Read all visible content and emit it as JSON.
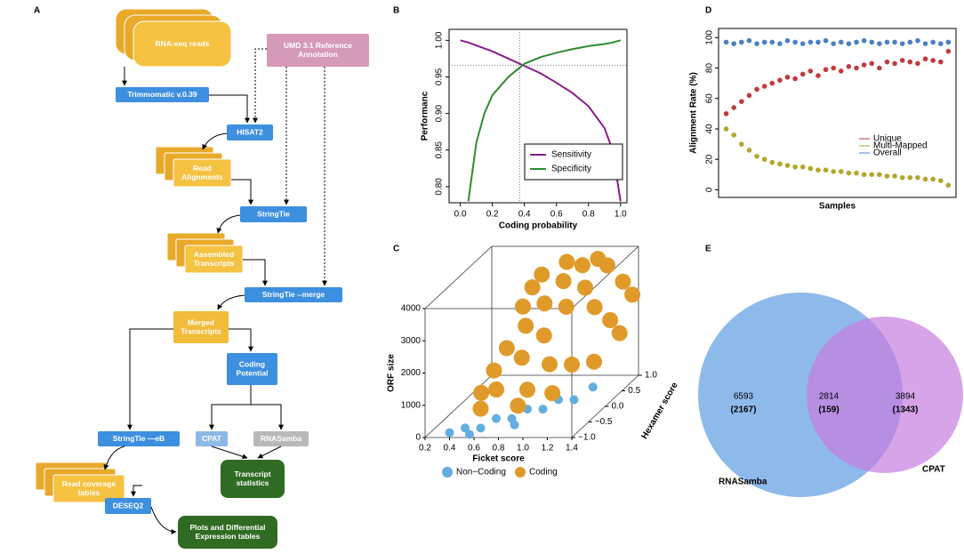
{
  "panel_labels": [
    "A",
    "B",
    "C",
    "D",
    "E"
  ],
  "diagram": {
    "nodes": [
      {
        "label": [
          "RNA-seq reads"
        ]
      },
      {
        "label": [
          "UMD 3.1 Reference",
          "Annotation"
        ]
      },
      {
        "label": [
          "Trimmomatic  v.0.39"
        ]
      },
      {
        "label": [
          "HISAT2"
        ]
      },
      {
        "label": [
          "Read",
          "Alignments"
        ]
      },
      {
        "label": [
          "StringTie"
        ]
      },
      {
        "label": [
          "Assembled",
          "Transcripts"
        ]
      },
      {
        "label": [
          "StringTie --merge"
        ]
      },
      {
        "label": [
          "Merged",
          "Transcripts"
        ]
      },
      {
        "label": [
          "Coding",
          "Potential"
        ]
      },
      {
        "label": [
          "StringTie —eB"
        ]
      },
      {
        "label": [
          "CPAT"
        ]
      },
      {
        "label": [
          "RNASamba"
        ]
      },
      {
        "label": [
          "Read coverage",
          "tables"
        ]
      },
      {
        "label": [
          "Transcript",
          "statistics"
        ]
      },
      {
        "label": [
          "DESEQ2"
        ]
      },
      {
        "label": [
          "Plots and Differential",
          "Expression tables"
        ]
      }
    ]
  },
  "chart_data": [
    {
      "type": "line",
      "xlabel": "Coding probability",
      "ylabel": "Performanc",
      "x": [
        0,
        0.05,
        0.1,
        0.15,
        0.2,
        0.3,
        0.4,
        0.5,
        0.6,
        0.7,
        0.8,
        0.9,
        0.95,
        1.0
      ],
      "xlim": [
        -0.07,
        1.04
      ],
      "ylim": [
        0.778,
        1.015
      ],
      "xticks": [
        {
          "value": 0,
          "label": "0.0"
        },
        0.2,
        0.4,
        0.6,
        0.8,
        {
          "value": 1,
          "label": "1.0"
        }
      ],
      "yticks": [
        {
          "value": 0.8,
          "label": "0.80"
        },
        0.85,
        {
          "value": 0.9,
          "label": "0.90"
        },
        0.95,
        {
          "value": 1,
          "label": "1.00"
        }
      ],
      "reference_lines": {
        "x": 0.37,
        "y": 0.966
      },
      "legend": "bottom-right",
      "series": [
        {
          "name": "Sensitivity",
          "color": "#8b1a8b",
          "values": [
            1.0,
            0.997,
            0.993,
            0.989,
            0.985,
            0.975,
            0.965,
            0.955,
            0.942,
            0.928,
            0.91,
            0.88,
            0.85,
            0.78
          ]
        },
        {
          "name": "Specificity",
          "color": "#2e8b2e",
          "values": [
            null,
            0.78,
            0.86,
            0.9,
            0.925,
            0.95,
            0.968,
            0.977,
            0.983,
            0.988,
            0.992,
            0.995,
            0.997,
            1.0
          ]
        }
      ]
    },
    {
      "type": "scatter3d",
      "xlabel": "Ficket score",
      "ylabel": "ORF size",
      "zlabel": "Hexamer score",
      "xlim": [
        0.2,
        1.4
      ],
      "ylim": [
        0,
        4000
      ],
      "zlim": [
        -1,
        1
      ],
      "xticks": [
        0.2,
        0.4,
        0.6,
        0.8,
        {
          "value": 1,
          "label": "1.0"
        },
        1.2,
        1.4
      ],
      "yticks": [
        0,
        1000,
        2000,
        3000,
        4000
      ],
      "zticks": [
        {
          "value": -1,
          "label": "−1.0"
        },
        {
          "value": -0.5,
          "label": "−0.5"
        },
        {
          "value": 0,
          "label": "0.0"
        },
        0.5,
        {
          "value": 1,
          "label": "1.0"
        }
      ],
      "legend": "bottom",
      "series": [
        {
          "name": "Non−Coding",
          "color": "#62aee0",
          "x": [
            0.4,
            0.5,
            0.6,
            0.7,
            0.8,
            0.9,
            1.0,
            1.1,
            1.2,
            1.3,
            0.55,
            0.85
          ],
          "y": [
            150,
            200,
            100,
            300,
            200,
            400,
            300,
            500,
            400,
            600,
            50,
            100
          ],
          "z": [
            -1.0,
            -0.9,
            -0.8,
            -0.7,
            -0.6,
            -0.5,
            -0.4,
            -0.3,
            -0.2,
            0,
            -0.95,
            -0.7
          ]
        },
        {
          "name": "Coding",
          "color": "#e09a2a",
          "x": [
            0.55,
            0.6,
            0.65,
            0.7,
            0.75,
            0.8,
            0.85,
            0.9,
            0.95,
            1.0,
            1.05,
            1.1,
            1.15,
            1.2,
            1.25,
            1.3,
            0.7,
            0.8,
            0.9,
            1.0,
            1.1,
            1.2,
            1.3,
            0.6,
            0.85,
            1.05,
            0.75,
            0.95,
            1.35,
            1.15
          ],
          "y": [
            1000,
            1500,
            2000,
            1200,
            2500,
            1800,
            3000,
            2200,
            3500,
            2800,
            3800,
            3200,
            2500,
            3600,
            2000,
            3000,
            3000,
            3800,
            1000,
            1500,
            1200,
            1000,
            1500,
            700,
            600,
            700,
            3500,
            4000,
            2500,
            3900
          ],
          "z": [
            -0.6,
            -0.4,
            -0.2,
            -0.7,
            0,
            -0.3,
            0.2,
            0,
            0.4,
            0.3,
            0.6,
            0.5,
            0.6,
            0.8,
            0.7,
            0.9,
            0.1,
            0.3,
            -0.5,
            -0.2,
            0.1,
            0.4,
            0.8,
            -0.8,
            -0.6,
            -0.3,
            0.2,
            0.5,
            1.0,
            0.7
          ]
        }
      ]
    },
    {
      "type": "scatter",
      "xlabel": "Samples",
      "ylabel": "Alignment Rate (%)",
      "x": [
        1,
        2,
        3,
        4,
        5,
        6,
        7,
        8,
        9,
        10,
        11,
        12,
        13,
        14,
        15,
        16,
        17,
        18,
        19,
        20,
        21,
        22,
        23,
        24,
        25,
        26,
        27,
        28,
        29,
        30
      ],
      "xlim": [
        0,
        31
      ],
      "ylim": [
        -5,
        106
      ],
      "yticks": [
        0,
        20,
        40,
        60,
        80,
        100
      ],
      "legend": "center-right",
      "series": [
        {
          "name": "Unique",
          "color": "#c03b3b",
          "values": [
            50,
            54,
            58,
            62,
            66,
            68,
            70,
            72,
            74,
            73,
            76,
            78,
            75,
            79,
            80,
            78,
            81,
            80,
            82,
            83,
            80,
            84,
            83,
            85,
            84,
            83,
            86,
            85,
            84,
            91
          ]
        },
        {
          "name": "Multi-Mapped",
          "color": "#b5a52a",
          "values": [
            40,
            36,
            30,
            26,
            22,
            20,
            18,
            17,
            16,
            15,
            15,
            14,
            13,
            13,
            12,
            12,
            11,
            11,
            10,
            10,
            10,
            9,
            9,
            8,
            8,
            8,
            7,
            7,
            6,
            3
          ]
        },
        {
          "name": "Overall",
          "color": "#4a80c4",
          "values": [
            97,
            96,
            97,
            98,
            96,
            97,
            97,
            96,
            98,
            97,
            96,
            97,
            97,
            98,
            96,
            97,
            96,
            97,
            98,
            97,
            96,
            97,
            97,
            96,
            97,
            98,
            96,
            97,
            96,
            97
          ]
        }
      ]
    },
    {
      "type": "venn",
      "sets": [
        {
          "name": "RNASamba",
          "color": "#7aaee8"
        },
        {
          "name": "CPAT",
          "color": "#c77ee0"
        }
      ],
      "values": [
        6593,
        2814,
        3894
      ],
      "secondary_values": [
        2167,
        159,
        1343
      ],
      "secondary_value_labels": [
        "(2167)",
        "(159)",
        "(1343)"
      ]
    }
  ]
}
